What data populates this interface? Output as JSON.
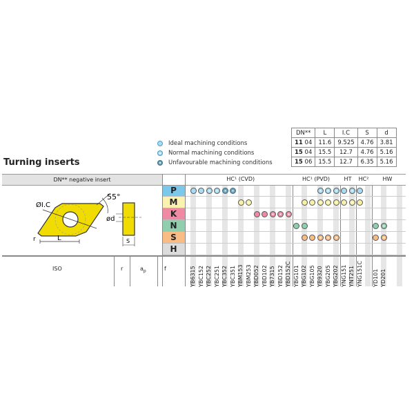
{
  "title": "Turning inserts",
  "legend": [
    {
      "label": "Ideal machining conditions",
      "icon": "ideal"
    },
    {
      "label": "Normal machining conditions",
      "icon": "normal"
    },
    {
      "label": "Unfavourable machining conditions",
      "icon": "unfavourable"
    }
  ],
  "dims": {
    "headers": [
      "DN**",
      "L",
      "I.C",
      "S",
      "d"
    ],
    "rows": [
      [
        "11",
        "04",
        "11.6",
        "9.525",
        "4.76",
        "3.81"
      ],
      [
        "15",
        "04",
        "15.5",
        "12.7",
        "4.76",
        "5.16"
      ],
      [
        "15",
        "06",
        "15.5",
        "12.7",
        "6.35",
        "5.16"
      ]
    ]
  },
  "insert_header": "DN** negative insert",
  "drawing": {
    "angle": "55°",
    "ic": "ØI.C",
    "r": "r",
    "l": "L",
    "d": "ød",
    "s": "S"
  },
  "bottom": {
    "iso": "ISO",
    "r": "r",
    "ap": "a",
    "ap_sub": "p",
    "f": "f"
  },
  "groups": [
    {
      "label": "HC¹ (CVD)",
      "span": 13
    },
    {
      "label": "HC¹ (PVD)",
      "span": 6
    },
    {
      "label": "HT",
      "span": 2
    },
    {
      "label": "HC²",
      "span": 2
    },
    {
      "label": "HW",
      "span": 4
    }
  ],
  "grades": [
    "YB6315",
    "YBC152",
    "YBC252",
    "YBC251",
    "YBC352",
    "YBC351",
    "YBM153",
    "YBM253",
    "YBD052",
    "YBD102",
    "YB7315",
    "YBD152",
    "YBD152C",
    "YBG101",
    "YBG102",
    "YBG105",
    "YB9320",
    "YBG205",
    "YBG202",
    "YNG151",
    "YNT251",
    "YNG151C",
    "",
    "YD101",
    "YD201",
    "",
    ""
  ],
  "materials": [
    {
      "letter": "P",
      "color": "#7cc8ea",
      "dot": "#a9dcf2",
      "cells": {
        "0": "i",
        "1": "i",
        "2": "n",
        "3": "n",
        "4": "u",
        "5": "u",
        "16": "n",
        "17": "n",
        "18": "n",
        "19": "i",
        "20": "n",
        "21": "i"
      }
    },
    {
      "letter": "M",
      "color": "#fbf2b0",
      "dot": "#f7f0a8",
      "cells": {
        "6": "i",
        "7": "n",
        "14": "i",
        "15": "i",
        "16": "n",
        "17": "n",
        "18": "n",
        "19": "i",
        "20": "n",
        "21": "i"
      }
    },
    {
      "letter": "K",
      "color": "#ef8aa4",
      "dot": "#ef8aa4",
      "cells": {
        "8": "i",
        "9": "i",
        "10": "n",
        "11": "n",
        "12": "n"
      }
    },
    {
      "letter": "N",
      "color": "#8fcfae",
      "dot": "#8fcfae",
      "cells": {
        "13": "i",
        "14": "i",
        "23": "i",
        "24": "n"
      }
    },
    {
      "letter": "S",
      "color": "#f8bc84",
      "dot": "#f8bc84",
      "cells": {
        "14": "i",
        "15": "i",
        "16": "n",
        "17": "n",
        "18": "n",
        "23": "i",
        "24": "n"
      }
    },
    {
      "letter": "H",
      "color": "#dcdcdc",
      "dot": "#dcdcdc",
      "cells": {}
    }
  ]
}
